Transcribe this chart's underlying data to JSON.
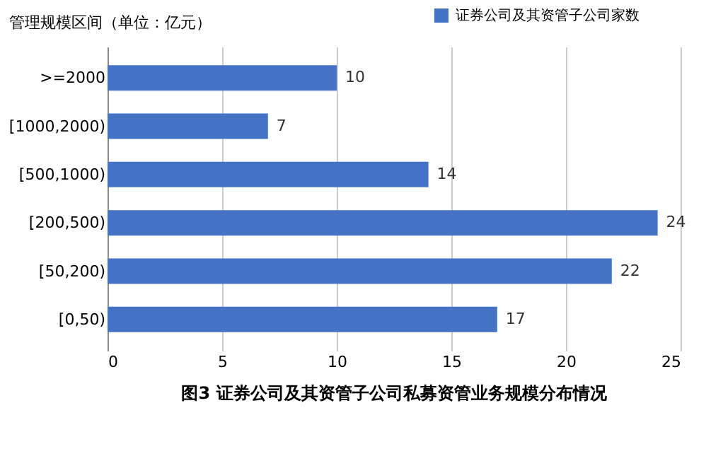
{
  "chart_data": {
    "type": "bar",
    "orientation": "horizontal",
    "title": "图3  证券公司及其资管子公司私募资管业务规模分布情况",
    "ylabel": "管理规模区间（单位：亿元）",
    "categories": [
      ">=2000",
      "[1000,2000)",
      "[500,1000)",
      "[200,500)",
      "[50,200)",
      "[0,50)"
    ],
    "series": [
      {
        "name": "证券公司及其资管子公司家数",
        "color": "#4472c4",
        "values": [
          10,
          7,
          14,
          24,
          22,
          17
        ]
      }
    ],
    "xlim": [
      0,
      25
    ],
    "xticks": [
      0,
      5,
      10,
      15,
      20,
      25
    ],
    "grid": "x",
    "legend": "top right",
    "data_labels": true
  }
}
